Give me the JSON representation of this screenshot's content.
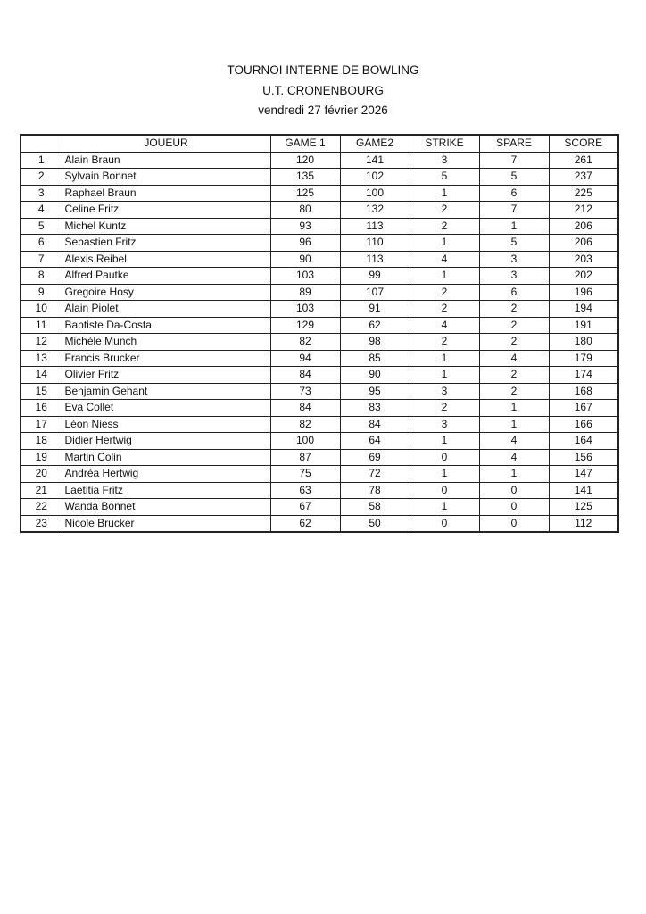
{
  "header": {
    "title": "TOURNOI INTERNE DE BOWLING",
    "club": "U.T. CRONENBOURG",
    "date": "vendredi 27 février 2026"
  },
  "table": {
    "columns": [
      "",
      "JOUEUR",
      "GAME 1",
      "GAME2",
      "STRIKE",
      "SPARE",
      "SCORE"
    ],
    "rows": [
      [
        "1",
        "Alain Braun",
        "120",
        "141",
        "3",
        "7",
        "261"
      ],
      [
        "2",
        "Sylvain Bonnet",
        "135",
        "102",
        "5",
        "5",
        "237"
      ],
      [
        "3",
        "Raphael Braun",
        "125",
        "100",
        "1",
        "6",
        "225"
      ],
      [
        "4",
        "Celine Fritz",
        "80",
        "132",
        "2",
        "7",
        "212"
      ],
      [
        "5",
        "Michel Kuntz",
        "93",
        "113",
        "2",
        "1",
        "206"
      ],
      [
        "6",
        "Sebastien Fritz",
        "96",
        "110",
        "1",
        "5",
        "206"
      ],
      [
        "7",
        "Alexis Reibel",
        "90",
        "113",
        "4",
        "3",
        "203"
      ],
      [
        "8",
        "Alfred Pautke",
        "103",
        "99",
        "1",
        "3",
        "202"
      ],
      [
        "9",
        "Gregoire Hosy",
        "89",
        "107",
        "2",
        "6",
        "196"
      ],
      [
        "10",
        "Alain Piolet",
        "103",
        "91",
        "2",
        "2",
        "194"
      ],
      [
        "11",
        "Baptiste Da-Costa",
        "129",
        "62",
        "4",
        "2",
        "191"
      ],
      [
        "12",
        "Michèle Munch",
        "82",
        "98",
        "2",
        "2",
        "180"
      ],
      [
        "13",
        "Francis Brucker",
        "94",
        "85",
        "1",
        "4",
        "179"
      ],
      [
        "14",
        "Olivier Fritz",
        "84",
        "90",
        "1",
        "2",
        "174"
      ],
      [
        "15",
        "Benjamin Gehant",
        "73",
        "95",
        "3",
        "2",
        "168"
      ],
      [
        "16",
        "Eva Collet",
        "84",
        "83",
        "2",
        "1",
        "167"
      ],
      [
        "17",
        "Léon Niess",
        "82",
        "84",
        "3",
        "1",
        "166"
      ],
      [
        "18",
        "Didier Hertwig",
        "100",
        "64",
        "1",
        "4",
        "164"
      ],
      [
        "19",
        "Martin Colin",
        "87",
        "69",
        "0",
        "4",
        "156"
      ],
      [
        "20",
        "Andréa Hertwig",
        "75",
        "72",
        "1",
        "1",
        "147"
      ],
      [
        "21",
        "Laetitia Fritz",
        "63",
        "78",
        "0",
        "0",
        "141"
      ],
      [
        "22",
        "Wanda Bonnet",
        "67",
        "58",
        "1",
        "0",
        "125"
      ],
      [
        "23",
        "Nicole Brucker",
        "62",
        "50",
        "0",
        "0",
        "112"
      ]
    ]
  }
}
